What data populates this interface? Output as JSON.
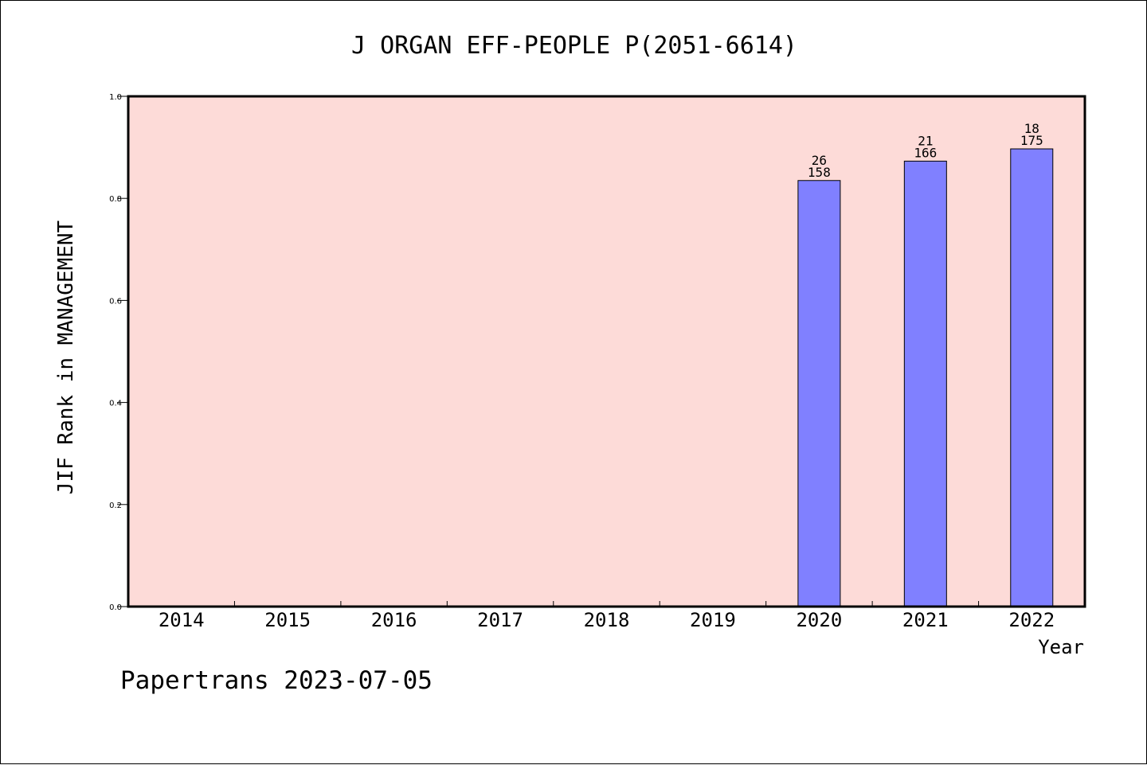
{
  "chart_data": {
    "type": "bar",
    "title": "J ORGAN EFF-PEOPLE P(2051-6614)",
    "xlabel": "Year",
    "ylabel": "JIF Rank in MANAGEMENT",
    "categories": [
      "2014",
      "2015",
      "2016",
      "2017",
      "2018",
      "2019",
      "2020",
      "2021",
      "2022"
    ],
    "values": [
      null,
      null,
      null,
      null,
      null,
      null,
      0.835,
      0.873,
      0.897
    ],
    "rank": [
      null,
      null,
      null,
      null,
      null,
      null,
      "26",
      "21",
      "18"
    ],
    "total": [
      null,
      null,
      null,
      null,
      null,
      null,
      "158",
      "166",
      "175"
    ],
    "ylim": [
      0,
      1.0
    ],
    "yticks": [
      0.0,
      0.2,
      0.4,
      0.6,
      0.8,
      1.0
    ],
    "ytick_labels": [
      "0.0",
      "0.2",
      "0.4",
      "0.6",
      "0.8",
      "1.0"
    ],
    "grid": false,
    "colors": {
      "plot_background": "#fddbd8",
      "bar_fill": "#8080ff",
      "bar_stroke": "#000000"
    }
  },
  "footer": {
    "credit": "Papertrans 2023-07-05"
  }
}
